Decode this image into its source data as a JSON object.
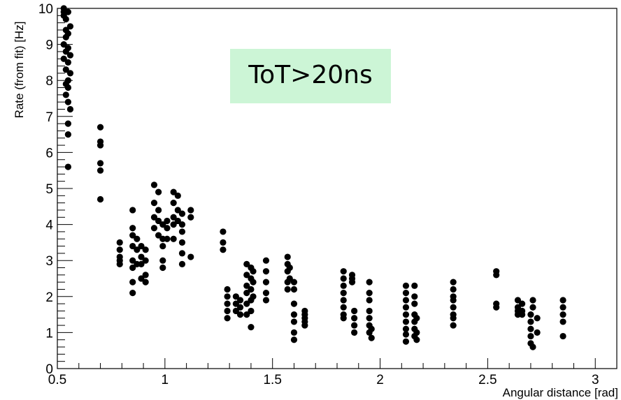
{
  "chart_data": {
    "type": "scatter",
    "xlabel": "Angular distance [rad]",
    "ylabel": "Rate (from fit) [Hz]",
    "xlim": [
      0.5,
      3.1
    ],
    "ylim": [
      0,
      10
    ],
    "x_ticks": [
      "0.5",
      "1",
      "1.5",
      "2",
      "2.5",
      "3"
    ],
    "y_ticks": [
      "0",
      "1",
      "2",
      "3",
      "4",
      "5",
      "6",
      "7",
      "8",
      "9",
      "10"
    ],
    "grid": false,
    "legend": "none",
    "annotation": {
      "text": "ToT>20ns",
      "background": "#ccf5d6"
    },
    "marker_color": "#000000",
    "series": [
      {
        "points": [
          [
            0.53,
            10.0
          ],
          [
            0.53,
            9.9
          ],
          [
            0.53,
            9.8
          ],
          [
            0.54,
            9.7
          ],
          [
            0.55,
            9.9
          ],
          [
            0.54,
            9.4
          ],
          [
            0.56,
            9.5
          ],
          [
            0.55,
            9.3
          ],
          [
            0.54,
            9.2
          ],
          [
            0.53,
            9.0
          ],
          [
            0.55,
            8.9
          ],
          [
            0.54,
            8.8
          ],
          [
            0.56,
            8.7
          ],
          [
            0.53,
            8.6
          ],
          [
            0.55,
            8.5
          ],
          [
            0.54,
            8.3
          ],
          [
            0.56,
            8.2
          ],
          [
            0.55,
            8.0
          ],
          [
            0.54,
            7.9
          ],
          [
            0.55,
            7.8
          ],
          [
            0.54,
            7.6
          ],
          [
            0.55,
            7.4
          ],
          [
            0.56,
            7.2
          ],
          [
            0.55,
            6.8
          ],
          [
            0.55,
            6.5
          ],
          [
            0.55,
            5.6
          ],
          [
            0.7,
            6.7
          ],
          [
            0.7,
            6.3
          ],
          [
            0.7,
            6.2
          ],
          [
            0.7,
            5.7
          ],
          [
            0.7,
            5.5
          ],
          [
            0.7,
            4.7
          ],
          [
            0.79,
            3.5
          ],
          [
            0.79,
            3.3
          ],
          [
            0.79,
            3.1
          ],
          [
            0.79,
            3.0
          ],
          [
            0.79,
            2.9
          ],
          [
            0.85,
            4.4
          ],
          [
            0.85,
            3.9
          ],
          [
            0.85,
            3.7
          ],
          [
            0.85,
            3.4
          ],
          [
            0.85,
            3.0
          ],
          [
            0.85,
            2.8
          ],
          [
            0.85,
            2.4
          ],
          [
            0.85,
            2.1
          ],
          [
            0.87,
            3.6
          ],
          [
            0.87,
            3.3
          ],
          [
            0.87,
            2.9
          ],
          [
            0.89,
            3.4
          ],
          [
            0.89,
            3.1
          ],
          [
            0.89,
            2.9
          ],
          [
            0.89,
            2.5
          ],
          [
            0.91,
            3.3
          ],
          [
            0.91,
            3.0
          ],
          [
            0.91,
            2.6
          ],
          [
            0.91,
            2.4
          ],
          [
            0.95,
            5.1
          ],
          [
            0.95,
            4.6
          ],
          [
            0.95,
            4.2
          ],
          [
            0.95,
            3.9
          ],
          [
            0.97,
            4.9
          ],
          [
            0.97,
            4.4
          ],
          [
            0.97,
            4.1
          ],
          [
            0.97,
            3.7
          ],
          [
            0.99,
            4.0
          ],
          [
            0.99,
            3.6
          ],
          [
            0.99,
            3.4
          ],
          [
            0.99,
            3.0
          ],
          [
            0.99,
            2.8
          ],
          [
            1.01,
            4.1
          ],
          [
            1.01,
            3.9
          ],
          [
            1.01,
            3.6
          ],
          [
            1.04,
            4.9
          ],
          [
            1.04,
            4.6
          ],
          [
            1.04,
            4.2
          ],
          [
            1.04,
            4.0
          ],
          [
            1.04,
            3.6
          ],
          [
            1.06,
            4.8
          ],
          [
            1.06,
            4.4
          ],
          [
            1.06,
            4.1
          ],
          [
            1.08,
            4.3
          ],
          [
            1.08,
            4.0
          ],
          [
            1.08,
            3.8
          ],
          [
            1.08,
            3.5
          ],
          [
            1.08,
            3.2
          ],
          [
            1.08,
            2.9
          ],
          [
            1.12,
            4.4
          ],
          [
            1.12,
            4.2
          ],
          [
            1.12,
            3.1
          ],
          [
            1.27,
            3.8
          ],
          [
            1.27,
            3.5
          ],
          [
            1.27,
            3.3
          ],
          [
            1.29,
            2.2
          ],
          [
            1.29,
            2.0
          ],
          [
            1.29,
            1.8
          ],
          [
            1.29,
            1.6
          ],
          [
            1.29,
            1.4
          ],
          [
            1.33,
            2.0
          ],
          [
            1.33,
            1.8
          ],
          [
            1.33,
            1.6
          ],
          [
            1.35,
            1.9
          ],
          [
            1.35,
            1.7
          ],
          [
            1.35,
            1.5
          ],
          [
            1.38,
            2.9
          ],
          [
            1.38,
            2.6
          ],
          [
            1.38,
            2.3
          ],
          [
            1.38,
            2.1
          ],
          [
            1.38,
            1.8
          ],
          [
            1.38,
            1.5
          ],
          [
            1.4,
            2.8
          ],
          [
            1.4,
            2.5
          ],
          [
            1.4,
            2.2
          ],
          [
            1.4,
            1.9
          ],
          [
            1.4,
            1.6
          ],
          [
            1.4,
            1.15
          ],
          [
            1.41,
            2.7
          ],
          [
            1.41,
            2.4
          ],
          [
            1.41,
            2.0
          ],
          [
            1.47,
            3.0
          ],
          [
            1.47,
            2.7
          ],
          [
            1.47,
            2.4
          ],
          [
            1.47,
            2.1
          ],
          [
            1.47,
            1.9
          ],
          [
            1.57,
            3.1
          ],
          [
            1.57,
            2.9
          ],
          [
            1.57,
            2.7
          ],
          [
            1.57,
            2.4
          ],
          [
            1.57,
            2.2
          ],
          [
            1.58,
            2.8
          ],
          [
            1.58,
            2.5
          ],
          [
            1.6,
            2.4
          ],
          [
            1.6,
            2.2
          ],
          [
            1.6,
            1.8
          ],
          [
            1.6,
            1.5
          ],
          [
            1.6,
            1.3
          ],
          [
            1.6,
            1.0
          ],
          [
            1.6,
            0.8
          ],
          [
            1.65,
            1.6
          ],
          [
            1.65,
            1.5
          ],
          [
            1.65,
            1.4
          ],
          [
            1.65,
            1.3
          ],
          [
            1.65,
            1.2
          ],
          [
            1.83,
            2.7
          ],
          [
            1.83,
            2.5
          ],
          [
            1.83,
            2.3
          ],
          [
            1.83,
            2.1
          ],
          [
            1.83,
            1.9
          ],
          [
            1.83,
            1.7
          ],
          [
            1.83,
            1.5
          ],
          [
            1.83,
            1.4
          ],
          [
            1.87,
            2.6
          ],
          [
            1.87,
            2.5
          ],
          [
            1.87,
            2.4
          ],
          [
            1.88,
            1.6
          ],
          [
            1.88,
            1.4
          ],
          [
            1.88,
            1.2
          ],
          [
            1.88,
            1.0
          ],
          [
            1.95,
            2.4
          ],
          [
            1.95,
            2.1
          ],
          [
            1.95,
            1.9
          ],
          [
            1.95,
            1.6
          ],
          [
            1.95,
            1.4
          ],
          [
            1.95,
            1.2
          ],
          [
            1.95,
            1.0
          ],
          [
            1.96,
            1.1
          ],
          [
            1.96,
            0.85
          ],
          [
            2.12,
            2.3
          ],
          [
            2.12,
            2.1
          ],
          [
            2.12,
            1.9
          ],
          [
            2.12,
            1.7
          ],
          [
            2.12,
            1.5
          ],
          [
            2.12,
            1.3
          ],
          [
            2.12,
            1.1
          ],
          [
            2.12,
            0.95
          ],
          [
            2.12,
            0.75
          ],
          [
            2.16,
            2.3
          ],
          [
            2.16,
            2.0
          ],
          [
            2.16,
            1.8
          ],
          [
            2.16,
            1.5
          ],
          [
            2.16,
            1.3
          ],
          [
            2.16,
            1.1
          ],
          [
            2.16,
            0.9
          ],
          [
            2.17,
            1.4
          ],
          [
            2.17,
            1.0
          ],
          [
            2.17,
            0.8
          ],
          [
            2.34,
            2.4
          ],
          [
            2.34,
            2.2
          ],
          [
            2.34,
            2.0
          ],
          [
            2.34,
            1.9
          ],
          [
            2.34,
            1.7
          ],
          [
            2.34,
            1.5
          ],
          [
            2.34,
            1.4
          ],
          [
            2.34,
            1.2
          ],
          [
            2.54,
            2.7
          ],
          [
            2.54,
            2.6
          ],
          [
            2.54,
            1.8
          ],
          [
            2.54,
            1.7
          ],
          [
            2.64,
            1.9
          ],
          [
            2.64,
            1.7
          ],
          [
            2.64,
            1.6
          ],
          [
            2.64,
            1.5
          ],
          [
            2.66,
            1.8
          ],
          [
            2.66,
            1.6
          ],
          [
            2.66,
            1.5
          ],
          [
            2.7,
            1.5
          ],
          [
            2.7,
            1.3
          ],
          [
            2.7,
            1.1
          ],
          [
            2.7,
            0.9
          ],
          [
            2.7,
            0.7
          ],
          [
            2.71,
            1.9
          ],
          [
            2.71,
            1.7
          ],
          [
            2.71,
            0.6
          ],
          [
            2.73,
            1.4
          ],
          [
            2.73,
            1.0
          ],
          [
            2.85,
            1.9
          ],
          [
            2.85,
            1.7
          ],
          [
            2.85,
            1.5
          ],
          [
            2.85,
            1.3
          ],
          [
            2.85,
            0.9
          ]
        ]
      }
    ]
  }
}
